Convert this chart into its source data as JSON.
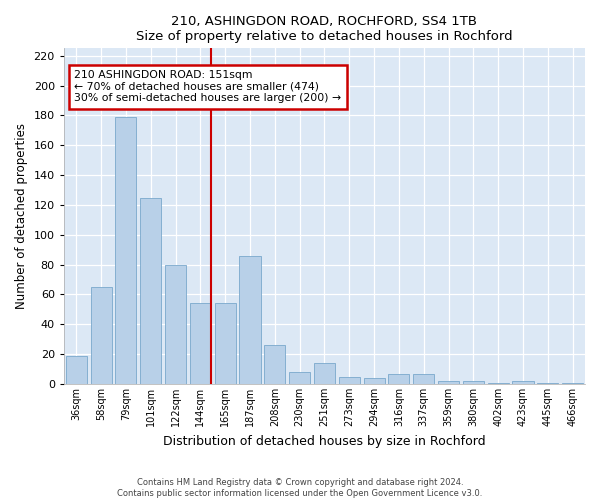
{
  "title1": "210, ASHINGDON ROAD, ROCHFORD, SS4 1TB",
  "title2": "Size of property relative to detached houses in Rochford",
  "xlabel": "Distribution of detached houses by size in Rochford",
  "ylabel": "Number of detached properties",
  "categories": [
    "36sqm",
    "58sqm",
    "79sqm",
    "101sqm",
    "122sqm",
    "144sqm",
    "165sqm",
    "187sqm",
    "208sqm",
    "230sqm",
    "251sqm",
    "273sqm",
    "294sqm",
    "316sqm",
    "337sqm",
    "359sqm",
    "380sqm",
    "402sqm",
    "423sqm",
    "445sqm",
    "466sqm"
  ],
  "values": [
    19,
    65,
    179,
    125,
    80,
    54,
    54,
    86,
    26,
    8,
    14,
    5,
    4,
    7,
    7,
    2,
    2,
    1,
    2,
    1,
    1
  ],
  "bar_color": "#b8d0e8",
  "bar_edge_color": "#7aa8cc",
  "vline_x": 5.45,
  "vline_color": "#cc0000",
  "annotation_text": "210 ASHINGDON ROAD: 151sqm\n← 70% of detached houses are smaller (474)\n30% of semi-detached houses are larger (200) →",
  "annotation_box_color": "#cc0000",
  "ylim": [
    0,
    225
  ],
  "yticks": [
    0,
    20,
    40,
    60,
    80,
    100,
    120,
    140,
    160,
    180,
    200,
    220
  ],
  "footnote1": "Contains HM Land Registry data © Crown copyright and database right 2024.",
  "footnote2": "Contains public sector information licensed under the Open Government Licence v3.0.",
  "fig_bg_color": "#ffffff",
  "plot_bg_color": "#dce8f5"
}
